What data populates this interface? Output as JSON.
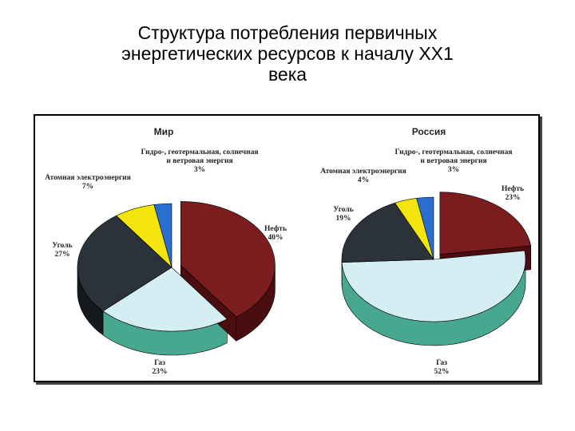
{
  "title": "Структура потребления первичных энергетических ресурсов к началу XX1 века",
  "chart_data": [
    {
      "type": "pie",
      "title": "Мир",
      "categories": [
        "Нефть",
        "Газ",
        "Уголь",
        "Атомная электроэнергия",
        "Гидро-, геотермальная, солнечная и ветровая энергия"
      ],
      "values": [
        40,
        23,
        27,
        7,
        3
      ],
      "value_labels": [
        "40%",
        "23%",
        "27%",
        "7%",
        "3%"
      ],
      "colors": [
        "#7b1d1f",
        "#d4eef3",
        "#2c3239",
        "#f3e40c",
        "#2a6fd0"
      ],
      "side_colors": [
        "#4a0e10",
        "#47a88f",
        "#15191d",
        "#a89b05",
        "#173f7a"
      ]
    },
    {
      "type": "pie",
      "title": "Россия",
      "categories": [
        "Нефть",
        "Газ",
        "Уголь",
        "Атомная электроэнергия",
        "Гидро-, геотермальная, солнечная и ветровая энергия"
      ],
      "values": [
        23,
        52,
        19,
        4,
        3
      ],
      "value_labels": [
        "23%",
        "52%",
        "19%",
        "4%",
        "3%"
      ],
      "colors": [
        "#7b1d1f",
        "#d4eef3",
        "#2c3239",
        "#f3e40c",
        "#2a6fd0"
      ],
      "side_colors": [
        "#4a0e10",
        "#47a88f",
        "#15191d",
        "#a89b05",
        "#173f7a"
      ]
    }
  ]
}
